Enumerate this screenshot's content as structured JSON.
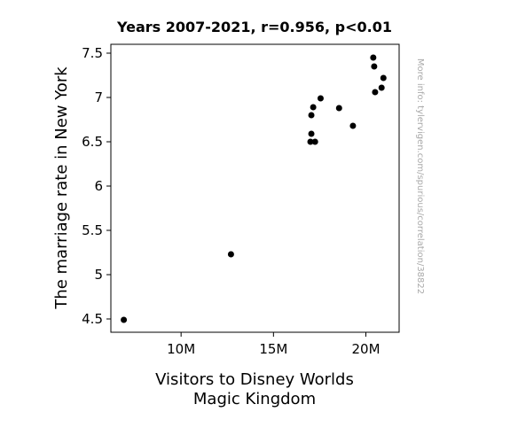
{
  "chart_data": {
    "type": "scatter",
    "title": "Years 2007-2021, r=0.956, p<0.01",
    "xlabel_lines": [
      "Visitors to Disney Worlds",
      "Magic Kingdom"
    ],
    "ylabel": "The marriage rate in New York",
    "watermark": "More info: tylervigen.com/spurious/correlation/38822",
    "xlim": [
      6200000,
      21800000
    ],
    "ylim": [
      4.35,
      7.6
    ],
    "x_ticks": [
      {
        "value": 10000000,
        "label": "10M"
      },
      {
        "value": 15000000,
        "label": "15M"
      },
      {
        "value": 20000000,
        "label": "20M"
      }
    ],
    "y_ticks": [
      {
        "value": 4.5,
        "label": "4.5"
      },
      {
        "value": 5,
        "label": "5"
      },
      {
        "value": 5.5,
        "label": "5.5"
      },
      {
        "value": 6,
        "label": "6"
      },
      {
        "value": 6.5,
        "label": "6.5"
      },
      {
        "value": 7,
        "label": "7"
      },
      {
        "value": 7.5,
        "label": "7.5"
      }
    ],
    "marker_color": "#000000",
    "points": [
      {
        "x": 6900000,
        "y": 4.49
      },
      {
        "x": 12700000,
        "y": 5.23
      },
      {
        "x": 17000000,
        "y": 6.5
      },
      {
        "x": 17050000,
        "y": 6.59
      },
      {
        "x": 17050000,
        "y": 6.8
      },
      {
        "x": 17150000,
        "y": 6.89
      },
      {
        "x": 17250000,
        "y": 6.5
      },
      {
        "x": 17550000,
        "y": 6.99
      },
      {
        "x": 18550000,
        "y": 6.88
      },
      {
        "x": 19300000,
        "y": 6.68
      },
      {
        "x": 20400000,
        "y": 7.45
      },
      {
        "x": 20450000,
        "y": 7.35
      },
      {
        "x": 20500000,
        "y": 7.06
      },
      {
        "x": 20850000,
        "y": 7.11
      },
      {
        "x": 20950000,
        "y": 7.22
      }
    ]
  }
}
